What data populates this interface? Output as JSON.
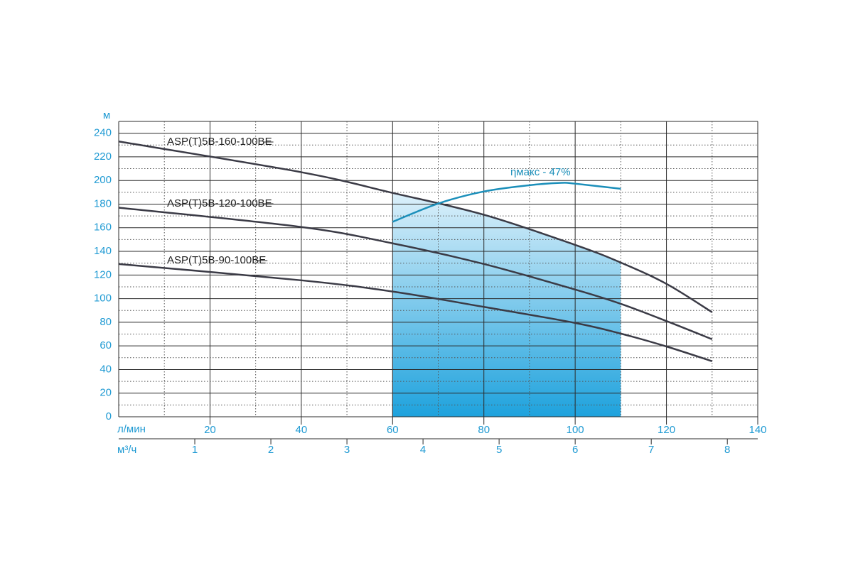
{
  "chart_data": {
    "type": "line",
    "y_axis_label": "м",
    "x_axis_label": "л/мин",
    "x2_axis_label": "м³/ч",
    "xlim": [
      0,
      140
    ],
    "ylim": [
      0,
      250
    ],
    "xticks": [
      20,
      40,
      60,
      80,
      100,
      120,
      140
    ],
    "x_minor_ticks": [
      10,
      30,
      50,
      70,
      90,
      110,
      130
    ],
    "yticks": [
      0,
      20,
      40,
      60,
      80,
      100,
      120,
      140,
      160,
      180,
      200,
      220,
      240
    ],
    "y_minor_ticks": [
      10,
      30,
      50,
      70,
      90,
      110,
      130,
      150,
      170,
      190,
      210,
      230
    ],
    "x2ticks": [
      1,
      2,
      3,
      4,
      5,
      6,
      7,
      8
    ],
    "x2_per_x": 16.667,
    "shade_range": [
      60,
      110
    ],
    "grid": true,
    "series": [
      {
        "name": "ASP(T)5B-160-100BE",
        "color": "#3b3b46",
        "x": [
          0,
          40,
          60,
          80,
          100,
          110,
          120,
          130
        ],
        "values": [
          233,
          207,
          189.5,
          171,
          145.5,
          130.5,
          112.5,
          88.5
        ]
      },
      {
        "name": "ASP(T)5B-120-100BE",
        "color": "#3b3b46",
        "x": [
          0,
          40,
          60,
          80,
          100,
          110,
          120,
          130
        ],
        "values": [
          177,
          160.6,
          146.8,
          129.3,
          107.7,
          95.6,
          81,
          65.6
        ]
      },
      {
        "name": "ASP(T)5B-90-100BE",
        "color": "#3b3b46",
        "x": [
          0,
          40,
          60,
          80,
          100,
          110,
          120,
          130
        ],
        "values": [
          129.3,
          115.5,
          106,
          93,
          79.4,
          70.4,
          59.5,
          47
        ]
      }
    ],
    "efficiency": {
      "annotation": "ηмакс - 47%",
      "color": "#1b8fba",
      "x": [
        60,
        70,
        80,
        90,
        97,
        100,
        110
      ],
      "values": [
        165,
        180.5,
        190.7,
        196,
        198,
        197.3,
        193
      ]
    }
  }
}
